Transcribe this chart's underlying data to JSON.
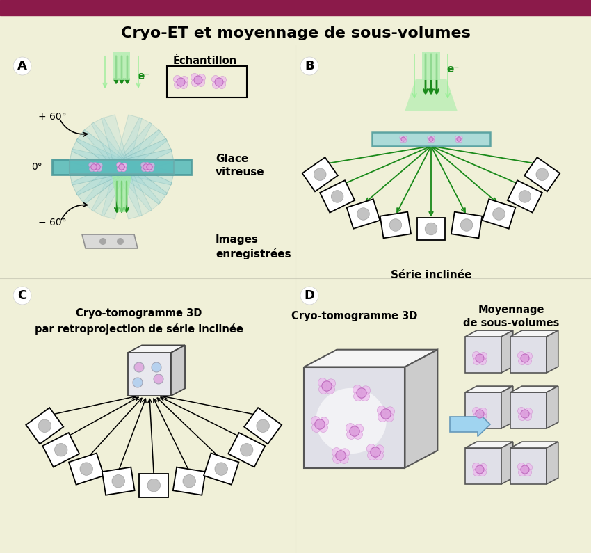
{
  "title": "Cryo-ΕT et moyennage de sous-volumes",
  "title_bar_color": "#8B1A4A",
  "bg_color": "#F0F0D8",
  "green_dark": "#1A8A1A",
  "green_light": "#90EE90",
  "green_mid": "#44BB44",
  "cyan_ice": "#A0D8D8",
  "cyan_ice_dark": "#5BBCBC",
  "cyan_ice_light": "#C8ECEC",
  "gray_plate": "#C8C8C8",
  "gray_img": "#D0D0D0",
  "pink_blob": "#DDA0DD",
  "pink_blob_dark": "#BB66BB",
  "blue_arrow": "#87CEEB",
  "blue_arrow_dark": "#6699BB",
  "black": "#111111",
  "label_echantillon": "Échantillon",
  "label_glace": "Glace\nvitreuse",
  "label_images": "Images\nenregistrées",
  "label_serie": "Série inclinée",
  "label_cryo3D_C": "Cryo-tomogramme 3D\npar retroprojection de série inclinée",
  "label_cryo3D_D": "Cryo-tomogramme 3D",
  "label_moyennage": "Moyennage\nde sous-volumes",
  "label_electron": "e⁻",
  "label_plus60": "+ 60°",
  "label_zero": "0°",
  "label_minus60": "− 60°"
}
